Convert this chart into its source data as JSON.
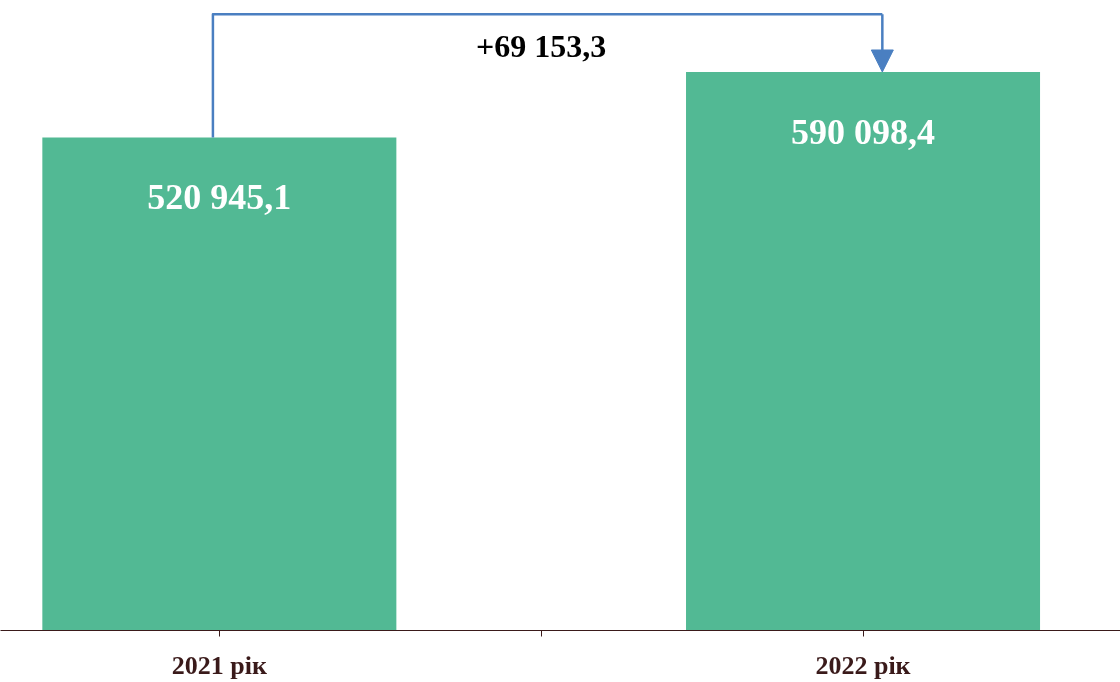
{
  "chart_data": {
    "type": "bar",
    "categories": [
      "2021 рік",
      "2022 рік"
    ],
    "values": [
      520945.1,
      590098.4
    ],
    "color": "#52b994",
    "value_labels": [
      "520 945,1",
      "590 098,4"
    ],
    "annotations": [
      "+69 153,3"
    ]
  }
}
